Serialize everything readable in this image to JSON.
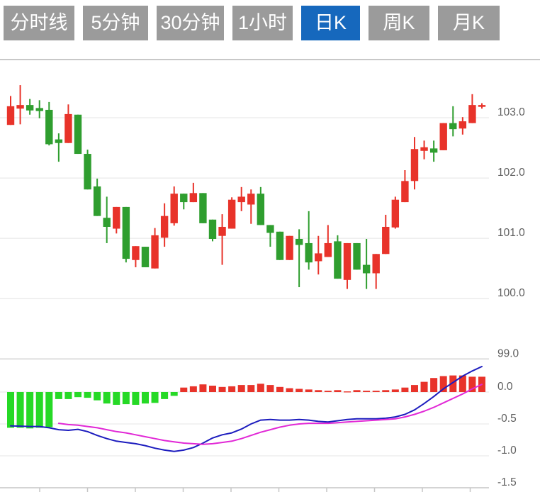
{
  "tabs": [
    {
      "label": "分时线",
      "active": false
    },
    {
      "label": "5分钟",
      "active": false
    },
    {
      "label": "30分钟",
      "active": false
    },
    {
      "label": "1小时",
      "active": false
    },
    {
      "label": "日K",
      "active": true
    },
    {
      "label": "周K",
      "active": false
    },
    {
      "label": "月K",
      "active": false
    }
  ],
  "colors": {
    "up": "#e8332a",
    "down": "#2f9e2f",
    "macd_up": "#e8332a",
    "macd_down": "#26d926",
    "dif_line": "#1c1cbe",
    "dea_line": "#e128d6",
    "tab_bg": "#9b9b9b",
    "tab_active_bg": "#1668bd",
    "tab_text": "#ffffff",
    "grid": "#e4e4e4",
    "panel_border": "#b5b5b5",
    "divider": "#cfcfcf",
    "axis_line": "#c6c6c6",
    "axis_text": "#5f5f5f"
  },
  "chart_data": {
    "type": "candlestick+macd-histogram",
    "title": "",
    "legend": [],
    "grid": true,
    "price_axis": {
      "side": "right",
      "tick_values": [
        103.0,
        102.0,
        101.0,
        100.0,
        99.0
      ],
      "tick_labels": [
        "103.0",
        "102.0",
        "101.0",
        "100.0",
        "99.0"
      ],
      "range": [
        99.0,
        103.95
      ]
    },
    "macd_axis": {
      "side": "right",
      "tick_values": [
        0.0,
        -0.5,
        -1.0,
        -1.5
      ],
      "tick_labels": [
        "0.0",
        "-0.5",
        "-1.0",
        "-1.5"
      ],
      "range": [
        -1.5,
        0.45
      ]
    },
    "x_axis": {
      "tick_count": 10,
      "labels_visible": false
    },
    "candle_columns": [
      "open",
      "high",
      "low",
      "close"
    ],
    "candles": [
      [
        102.88,
        103.36,
        102.88,
        103.19
      ],
      [
        103.15,
        103.54,
        102.89,
        103.21
      ],
      [
        103.21,
        103.31,
        103.05,
        103.12
      ],
      [
        103.16,
        103.29,
        102.99,
        103.11
      ],
      [
        103.13,
        103.26,
        102.54,
        102.56
      ],
      [
        102.64,
        102.74,
        102.27,
        102.58
      ],
      [
        102.58,
        103.22,
        102.58,
        103.06
      ],
      [
        103.05,
        103.05,
        102.4,
        102.4
      ],
      [
        102.4,
        102.47,
        101.81,
        101.81
      ],
      [
        101.86,
        101.99,
        101.37,
        101.37
      ],
      [
        101.34,
        101.69,
        100.92,
        101.19
      ],
      [
        101.16,
        101.52,
        101.08,
        101.52
      ],
      [
        101.52,
        101.52,
        100.6,
        100.66
      ],
      [
        100.64,
        100.87,
        100.52,
        100.87
      ],
      [
        100.86,
        100.86,
        100.52,
        100.52
      ],
      [
        100.5,
        101.17,
        100.5,
        101.05
      ],
      [
        101.01,
        101.58,
        100.86,
        101.37
      ],
      [
        101.25,
        101.86,
        101.21,
        101.74
      ],
      [
        101.74,
        101.74,
        101.48,
        101.6
      ],
      [
        101.6,
        101.92,
        101.6,
        101.75
      ],
      [
        101.75,
        101.75,
        101.25,
        101.25
      ],
      [
        101.31,
        101.31,
        100.95,
        100.99
      ],
      [
        101.04,
        101.4,
        100.56,
        101.19
      ],
      [
        101.16,
        101.68,
        101.16,
        101.64
      ],
      [
        101.6,
        101.85,
        101.45,
        101.69
      ],
      [
        101.56,
        101.81,
        101.24,
        101.74
      ],
      [
        101.74,
        101.85,
        101.22,
        101.22
      ],
      [
        101.22,
        101.22,
        100.86,
        101.09
      ],
      [
        101.11,
        101.11,
        100.64,
        100.64
      ],
      [
        100.64,
        101.04,
        100.64,
        101.04
      ],
      [
        100.99,
        101.15,
        100.19,
        100.89
      ],
      [
        100.92,
        101.45,
        100.48,
        100.6
      ],
      [
        100.62,
        101.04,
        100.4,
        100.75
      ],
      [
        100.69,
        101.22,
        100.69,
        100.92
      ],
      [
        100.95,
        101.05,
        100.33,
        100.33
      ],
      [
        100.31,
        100.92,
        100.16,
        100.92
      ],
      [
        100.92,
        100.92,
        100.48,
        100.48
      ],
      [
        100.56,
        100.99,
        100.16,
        100.42
      ],
      [
        100.42,
        100.74,
        100.16,
        100.74
      ],
      [
        100.74,
        101.39,
        100.74,
        101.19
      ],
      [
        101.18,
        101.69,
        101.16,
        101.64
      ],
      [
        101.6,
        102.13,
        101.6,
        101.95
      ],
      [
        101.95,
        102.68,
        101.81,
        102.48
      ],
      [
        102.45,
        102.62,
        102.31,
        102.51
      ],
      [
        102.49,
        102.62,
        102.27,
        102.42
      ],
      [
        102.46,
        102.91,
        102.46,
        102.91
      ],
      [
        102.91,
        103.19,
        102.69,
        102.81
      ],
      [
        102.82,
        103.01,
        102.72,
        102.94
      ],
      [
        102.91,
        103.39,
        102.91,
        103.21
      ],
      [
        103.18,
        103.24,
        103.15,
        103.21
      ]
    ],
    "macd": {
      "histogram": [
        -0.56,
        -0.56,
        -0.57,
        -0.56,
        -0.55,
        -0.11,
        -0.11,
        -0.08,
        -0.09,
        -0.13,
        -0.18,
        -0.2,
        -0.19,
        -0.2,
        -0.18,
        -0.17,
        -0.11,
        -0.06,
        0.07,
        0.09,
        0.12,
        0.1,
        0.08,
        0.09,
        0.11,
        0.11,
        0.13,
        0.11,
        0.08,
        0.06,
        0.05,
        0.04,
        0.03,
        0.02,
        0.03,
        0.01,
        0.03,
        0.02,
        0.02,
        0.03,
        0.04,
        0.07,
        0.11,
        0.16,
        0.22,
        0.25,
        0.26,
        0.26,
        0.24,
        0.24
      ],
      "dif": [
        -0.53,
        -0.535,
        -0.54,
        -0.54,
        -0.56,
        -0.59,
        -0.6,
        -0.585,
        -0.62,
        -0.68,
        -0.73,
        -0.77,
        -0.79,
        -0.81,
        -0.84,
        -0.88,
        -0.91,
        -0.93,
        -0.91,
        -0.87,
        -0.8,
        -0.72,
        -0.67,
        -0.64,
        -0.58,
        -0.5,
        -0.44,
        -0.43,
        -0.44,
        -0.44,
        -0.43,
        -0.44,
        -0.46,
        -0.47,
        -0.45,
        -0.43,
        -0.42,
        -0.42,
        -0.42,
        -0.41,
        -0.39,
        -0.35,
        -0.28,
        -0.18,
        -0.07,
        0.05,
        0.15,
        0.25,
        0.33,
        0.4
      ],
      "dea": [
        null,
        null,
        null,
        null,
        null,
        -0.49,
        -0.51,
        -0.52,
        -0.54,
        -0.56,
        -0.59,
        -0.62,
        -0.64,
        -0.67,
        -0.7,
        -0.73,
        -0.76,
        -0.78,
        -0.8,
        -0.81,
        -0.82,
        -0.81,
        -0.79,
        -0.77,
        -0.73,
        -0.68,
        -0.63,
        -0.59,
        -0.55,
        -0.52,
        -0.5,
        -0.49,
        -0.49,
        -0.49,
        -0.48,
        -0.47,
        -0.46,
        -0.45,
        -0.44,
        -0.43,
        -0.42,
        -0.39,
        -0.35,
        -0.3,
        -0.24,
        -0.17,
        -0.1,
        -0.03,
        0.05,
        0.12
      ]
    }
  }
}
